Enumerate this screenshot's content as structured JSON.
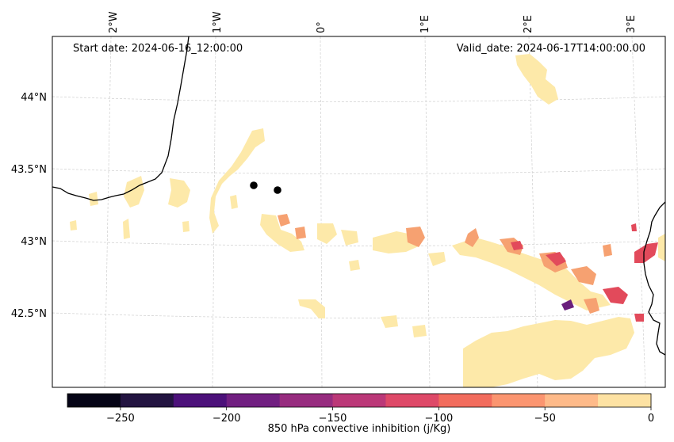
{
  "map": {
    "start_date": "Start date: 2024-06-16_12:00:00",
    "valid_date": "Valid_date: 2024-06-17T14:00:00.00",
    "lon_labels": [
      "2°W",
      "1°W",
      "0°",
      "1°E",
      "2°E",
      "3°E"
    ],
    "lat_labels": [
      "44°N",
      "43.5°N",
      "43°N",
      "42.5°N"
    ],
    "points": [
      "station-1",
      "station-2"
    ],
    "colors": {
      "coast": "#000000",
      "grid": "#cccccc",
      "field_weak": "#fde9a9",
      "field_mid": "#f3a471",
      "field_strong": "#e34a5a",
      "field_extreme": "#6a1f7c"
    }
  },
  "colorbar": {
    "label": "850 hPa convective inhibition (j/Kg)",
    "ticks": [
      "−250",
      "−200",
      "−150",
      "−100",
      "−50",
      "0"
    ],
    "colors": [
      "#050416",
      "#231441",
      "#4c117a",
      "#711f81",
      "#972c7f",
      "#bb3878",
      "#de4968",
      "#f26c5d",
      "#fb9570",
      "#feba89",
      "#fde2a3"
    ]
  }
}
